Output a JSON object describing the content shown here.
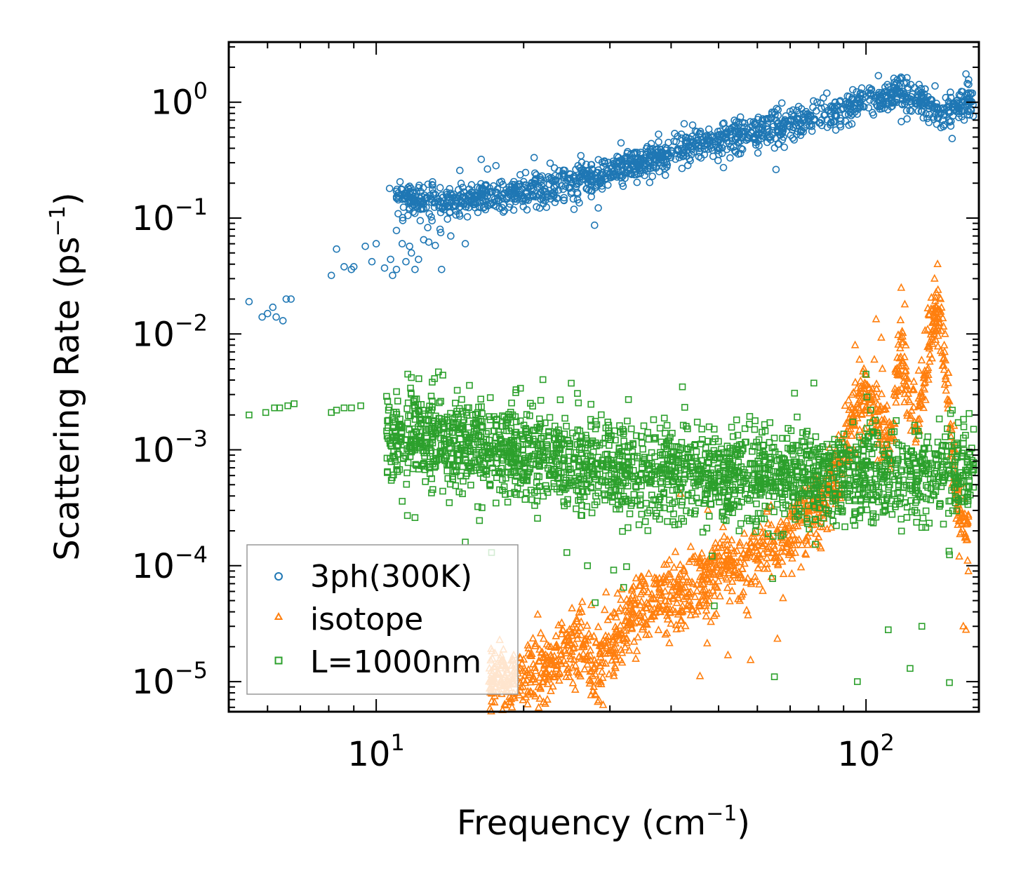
{
  "chart_data": {
    "type": "scatter",
    "xscale": "log",
    "yscale": "log",
    "title": "",
    "xlabel": "Frequency (cm",
    "xlabel_sup": "−1",
    "xlabel_end": ")",
    "ylabel": "Scattering Rate (ps",
    "ylabel_sup": "−1",
    "ylabel_end": ")",
    "xlim": [
      5.0,
      170.0
    ],
    "ylim": [
      5.5e-06,
      3.3
    ],
    "xticks": [
      {
        "value": 10,
        "base": "10",
        "exp": "1"
      },
      {
        "value": 100,
        "base": "10",
        "exp": "2"
      }
    ],
    "yticks": [
      {
        "value": 1,
        "base": "10",
        "exp": "0"
      },
      {
        "value": 0.1,
        "base": "10",
        "exp": "−1"
      },
      {
        "value": 0.01,
        "base": "10",
        "exp": "−2"
      },
      {
        "value": 0.001,
        "base": "10",
        "exp": "−3"
      },
      {
        "value": 0.0001,
        "base": "10",
        "exp": "−4"
      },
      {
        "value": 1e-05,
        "base": "10",
        "exp": "−5"
      }
    ],
    "legend": {
      "location": "lower-left",
      "entries": [
        "3ph(300K)",
        "isotope",
        "L=1000nm"
      ]
    },
    "series": [
      {
        "name": "3ph(300K)",
        "marker": "circle",
        "color": "#1f77b4",
        "points": [
          [
            5.5,
            0.019
          ],
          [
            5.85,
            0.014
          ],
          [
            6.0,
            0.015
          ],
          [
            6.15,
            0.017
          ],
          [
            6.25,
            0.014
          ],
          [
            6.45,
            0.013
          ],
          [
            6.55,
            0.02
          ],
          [
            6.7,
            0.02
          ],
          [
            8.1,
            0.032
          ],
          [
            8.3,
            0.054
          ],
          [
            8.6,
            0.038
          ],
          [
            8.9,
            0.036
          ],
          [
            9.0,
            0.038
          ],
          [
            9.5,
            0.057
          ],
          [
            9.8,
            0.042
          ],
          [
            10.0,
            0.06
          ],
          [
            10.4,
            0.037
          ],
          [
            10.7,
            0.044
          ],
          [
            10.8,
            0.032
          ],
          [
            11.0,
            0.036
          ],
          [
            11.0,
            0.078
          ],
          [
            11.3,
            0.06
          ],
          [
            11.5,
            0.042
          ],
          [
            11.7,
            0.057
          ],
          [
            12.0,
            0.036
          ],
          [
            12.2,
            0.044
          ],
          [
            12.5,
            0.065
          ],
          [
            12.8,
            0.062
          ],
          [
            13.2,
            0.058
          ],
          [
            13.6,
            0.036
          ],
          [
            11.8,
            0.05
          ],
          [
            12.3,
            0.095
          ],
          [
            10.65,
            0.18
          ],
          [
            11.0,
            0.17
          ],
          [
            11.3,
            0.145
          ],
          [
            11.7,
            0.16
          ],
          [
            12.0,
            0.14
          ],
          [
            12.5,
            0.12
          ],
          [
            13.0,
            0.095
          ],
          [
            13.5,
            0.08
          ],
          [
            14.2,
            0.07
          ],
          [
            15.2,
            0.06
          ],
          [
            160,
            1.75
          ],
          [
            161,
            1.45
          ],
          [
            162,
            1.2
          ],
          [
            163,
            1.0
          ],
          [
            164,
            0.85
          ]
        ],
        "band": {
          "x_start": 11.0,
          "x_end": 166.0,
          "trend": [
            [
              11,
              0.155
            ],
            [
              14,
              0.14
            ],
            [
              18,
              0.16
            ],
            [
              25,
              0.2
            ],
            [
              35,
              0.3
            ],
            [
              45,
              0.42
            ],
            [
              60,
              0.55
            ],
            [
              80,
              0.75
            ],
            [
              100,
              1.0
            ],
            [
              115,
              1.25
            ],
            [
              130,
              1.05
            ],
            [
              145,
              0.8
            ],
            [
              165,
              1.1
            ]
          ],
          "spread": 0.1,
          "count": 1400,
          "outlier_count": 60,
          "outlier_spread": 0.22
        }
      },
      {
        "name": "isotope",
        "marker": "triangle",
        "color": "#ff7f0e",
        "points": [
          [
            17.0,
            1e-05
          ],
          [
            17.5,
            1e-05
          ],
          [
            18.2,
            1.05e-05
          ],
          [
            19.0,
            1e-05
          ],
          [
            21.0,
            1.05e-05
          ],
          [
            23.0,
            1.1e-05
          ],
          [
            95,
            0.008
          ],
          [
            97,
            0.006
          ],
          [
            99,
            0.005
          ],
          [
            104,
            0.006
          ],
          [
            108,
            0.005
          ],
          [
            118,
            0.025
          ],
          [
            120,
            0.018
          ],
          [
            138,
            0.03
          ],
          [
            140,
            0.04
          ],
          [
            142,
            0.02
          ],
          [
            145,
            0.01
          ],
          [
            155,
            0.00012
          ],
          [
            160,
            2.8e-05
          ],
          [
            158,
            3e-05
          ]
        ],
        "band": {
          "x_start": 17.0,
          "x_end": 162.0,
          "trend": [
            [
              17,
              1.02e-05
            ],
            [
              20,
              1.05e-05
            ],
            [
              23,
              1.6e-05
            ],
            [
              26,
              2.2e-05
            ],
            [
              28,
              1.2e-05
            ],
            [
              32,
              3.5e-05
            ],
            [
              36,
              4.5e-05
            ],
            [
              42,
              6e-05
            ],
            [
              50,
              9e-05
            ],
            [
              60,
              0.00012
            ],
            [
              70,
              0.00018
            ],
            [
              80,
              0.0003
            ],
            [
              88,
              0.0006
            ],
            [
              94,
              0.002
            ],
            [
              100,
              0.003
            ],
            [
              106,
              0.002
            ],
            [
              112,
              0.0012
            ],
            [
              118,
              0.008
            ],
            [
              122,
              0.003
            ],
            [
              128,
              0.0018
            ],
            [
              135,
              0.01
            ],
            [
              140,
              0.015
            ],
            [
              145,
              0.006
            ],
            [
              150,
              0.001
            ],
            [
              155,
              0.0003
            ],
            [
              162,
              0.0002
            ]
          ],
          "spread": 0.22,
          "count": 1500,
          "outlier_count": 40,
          "outlier_spread": 0.55
        }
      },
      {
        "name": "L=1000nm",
        "marker": "square",
        "color": "#2ca02c",
        "points": [
          [
            5.5,
            0.002
          ],
          [
            5.95,
            0.0021
          ],
          [
            6.2,
            0.0023
          ],
          [
            6.35,
            0.0023
          ],
          [
            6.6,
            0.0024
          ],
          [
            6.8,
            0.0025
          ],
          [
            8.1,
            0.0021
          ],
          [
            8.3,
            0.0022
          ],
          [
            8.6,
            0.0023
          ],
          [
            8.9,
            0.0023
          ],
          [
            9.3,
            0.0024
          ],
          [
            11.6,
            0.0045
          ],
          [
            11.8,
            0.0042
          ],
          [
            13.4,
            0.0047
          ],
          [
            15.5,
            0.0036
          ],
          [
            19.3,
            0.0033
          ],
          [
            19.7,
            0.0034
          ],
          [
            11.3,
            0.00036
          ],
          [
            12.0,
            0.00026
          ],
          [
            14.1,
            0.00035
          ],
          [
            15.2,
            0.00016
          ],
          [
            17.2,
            0.00013
          ],
          [
            24.5,
            0.00013
          ],
          [
            27,
            0.0001
          ],
          [
            28,
            4.8e-05
          ],
          [
            32,
            6.5e-05
          ],
          [
            49,
            4.5e-05
          ],
          [
            65,
            1.1e-05
          ],
          [
            96,
            1e-05
          ],
          [
            111,
            2.8e-05
          ],
          [
            123,
            1.3e-05
          ],
          [
            130,
            3e-05
          ],
          [
            148,
            9.8e-06
          ],
          [
            100,
            0.0045
          ],
          [
            150,
            0.0022
          ]
        ],
        "band": {
          "x_start": 10.5,
          "x_end": 166.0,
          "trend": [
            [
              11,
              0.0014
            ],
            [
              15,
              0.0011
            ],
            [
              20,
              0.0009
            ],
            [
              30,
              0.0007
            ],
            [
              45,
              0.00065
            ],
            [
              60,
              0.0006
            ],
            [
              80,
              0.0006
            ],
            [
              100,
              0.0006
            ],
            [
              130,
              0.0006
            ],
            [
              166,
              0.0007
            ]
          ],
          "spread": 0.28,
          "count": 2200,
          "outlier_count": 90,
          "outlier_spread": 0.55
        }
      }
    ]
  }
}
